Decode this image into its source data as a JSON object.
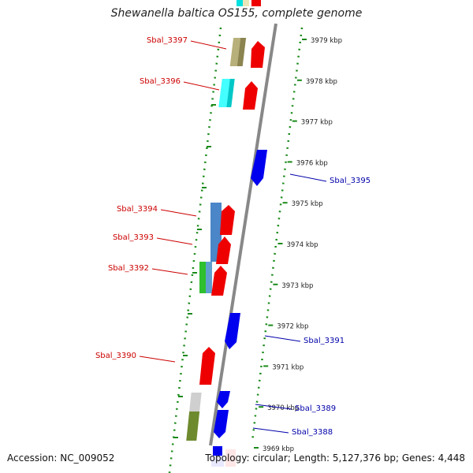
{
  "title": "Shewanella baltica OS155, complete genome",
  "accession": "Accession: NC_009052",
  "summary": "Topology: circular; Length: 5,127,376 bp; Genes: 4,448",
  "colors": {
    "forward": "#ee0000",
    "reverse": "#0000ee",
    "label_forward": "#cc0000",
    "label_reverse": "#0000aa",
    "ruler_dots": "#1a8a1a",
    "backbone": "#888888"
  },
  "ruler": {
    "unit": "kbp",
    "ticks": [
      {
        "kbp": 3979,
        "label": "3979 kbp"
      },
      {
        "kbp": 3978,
        "label": "3978 kbp"
      },
      {
        "kbp": 3977,
        "label": "3977 kbp"
      },
      {
        "kbp": 3976,
        "label": "3976 kbp"
      },
      {
        "kbp": 3975,
        "label": "3975 kbp"
      },
      {
        "kbp": 3974,
        "label": "3974 kbp"
      },
      {
        "kbp": 3973,
        "label": "3973 kbp"
      },
      {
        "kbp": 3972,
        "label": "3972 kbp"
      },
      {
        "kbp": 3971,
        "label": "3971 kbp"
      },
      {
        "kbp": 3970,
        "label": "3970 kbp"
      },
      {
        "kbp": 3969,
        "label": "3969 kbp"
      }
    ]
  },
  "gene_labels": [
    {
      "name": "Sbal_3397",
      "strand": "forward"
    },
    {
      "name": "Sbal_3396",
      "strand": "forward"
    },
    {
      "name": "Sbal_3395",
      "strand": "reverse"
    },
    {
      "name": "Sbal_3394",
      "strand": "forward"
    },
    {
      "name": "Sbal_3393",
      "strand": "forward"
    },
    {
      "name": "Sbal_3392",
      "strand": "forward"
    },
    {
      "name": "Sbal_3391",
      "strand": "reverse"
    },
    {
      "name": "Sbal_3390",
      "strand": "forward"
    },
    {
      "name": "Sbal_3389",
      "strand": "reverse"
    },
    {
      "name": "Sbal_3388",
      "strand": "reverse"
    }
  ]
}
